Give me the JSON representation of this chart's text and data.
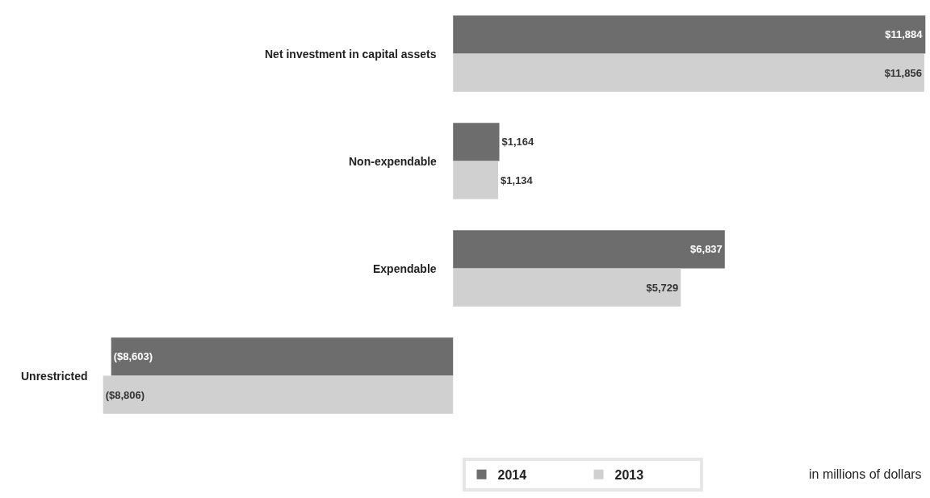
{
  "chart_data": {
    "type": "bar",
    "orientation": "horizontal",
    "categories": [
      "Net investment in capital assets",
      "Non-expendable",
      "Expendable",
      "Unrestricted"
    ],
    "series": [
      {
        "name": "2014",
        "color": "#6d6d6d",
        "values": [
          11884,
          1164,
          6837,
          -8603
        ],
        "value_labels": [
          "$11,884",
          "$1,164",
          "$6,837",
          "($8,603)"
        ]
      },
      {
        "name": "2013",
        "color": "#d0d0d0",
        "values": [
          11856,
          1134,
          5729,
          -8806
        ],
        "value_labels": [
          "$11,856",
          "$1,134",
          "$5,729",
          "($8,806)"
        ]
      }
    ],
    "xlim": [
      -11400,
      12000
    ],
    "tick_labels": "y",
    "legend": "bottom right",
    "annotations": [
      "in millions of dollars"
    ]
  }
}
